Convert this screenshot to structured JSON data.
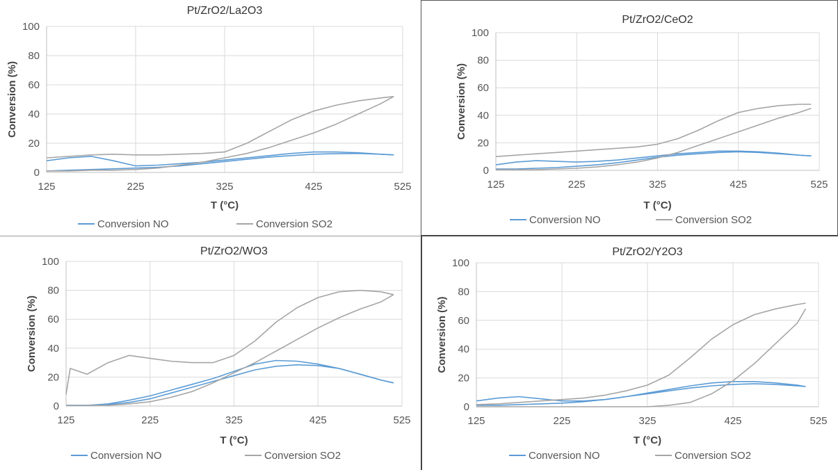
{
  "chart_data": [
    {
      "type": "line",
      "title": "Pt/ZrO2/La2O3",
      "xlabel": "T (°C)",
      "ylabel": "Conversion  (%)",
      "xlim": [
        125,
        525
      ],
      "ylim": [
        0,
        100
      ],
      "xticks": [
        125,
        225,
        325,
        425,
        525
      ],
      "yticks": [
        0,
        20,
        40,
        60,
        80,
        100
      ],
      "grid": true,
      "legend": "bottom",
      "series": [
        {
          "name": "Conversion  NO",
          "color": "#5b9bd5",
          "segments": [
            {
              "x": [
                125,
                150,
                175,
                200,
                225,
                250,
                275,
                300,
                325,
                350,
                375,
                400,
                425,
                450,
                475,
                500,
                515
              ],
              "y": [
                1,
                1.5,
                2,
                2.5,
                3,
                3.5,
                4.5,
                6,
                7.5,
                9,
                10.5,
                11.5,
                12.5,
                12.8,
                13,
                12.5,
                12
              ]
            },
            {
              "x": [
                515,
                500,
                475,
                450,
                425,
                400,
                375,
                350,
                325,
                300,
                275,
                250,
                225,
                200,
                175,
                150,
                125
              ],
              "y": [
                12,
                12.5,
                13.5,
                14,
                14,
                13,
                11.5,
                10,
                8.5,
                7,
                6,
                5,
                4.5,
                8,
                11,
                10,
                8
              ]
            }
          ]
        },
        {
          "name": "Conversion  SO2",
          "color": "#a5a5a5",
          "segments": [
            {
              "x": [
                125,
                150,
                175,
                200,
                225,
                250,
                275,
                300,
                325,
                350,
                375,
                400,
                425,
                450,
                475,
                500,
                515
              ],
              "y": [
                1,
                1,
                1.5,
                1.5,
                2,
                3,
                5,
                7,
                10,
                13,
                17,
                22,
                27,
                33,
                40,
                47,
                52
              ]
            },
            {
              "x": [
                515,
                500,
                475,
                450,
                425,
                400,
                375,
                350,
                325,
                300,
                275,
                250,
                225,
                200,
                175,
                150,
                125
              ],
              "y": [
                52,
                51,
                49,
                46,
                42,
                36,
                28,
                20,
                14,
                13,
                12.5,
                12,
                12,
                12.5,
                12,
                11,
                10
              ]
            }
          ]
        }
      ]
    },
    {
      "type": "line",
      "title": "Pt/ZrO2/CeO2",
      "xlabel": "T (°C)",
      "ylabel": "Conversion  (%)",
      "xlim": [
        125,
        525
      ],
      "ylim": [
        0,
        100
      ],
      "xticks": [
        125,
        225,
        325,
        425,
        525
      ],
      "yticks": [
        0,
        20,
        40,
        60,
        80,
        100
      ],
      "grid": true,
      "legend": "bottom",
      "series": [
        {
          "name": "Conversion  NO",
          "color": "#5b9bd5",
          "segments": [
            {
              "x": [
                125,
                150,
                175,
                200,
                225,
                250,
                275,
                300,
                325,
                350,
                375,
                400,
                425,
                450,
                475,
                500,
                515
              ],
              "y": [
                1,
                1,
                1.5,
                2,
                3,
                4,
                5.5,
                7.5,
                9.5,
                11,
                12,
                13,
                13.5,
                13,
                12,
                11,
                10.5
              ]
            },
            {
              "x": [
                515,
                500,
                475,
                450,
                425,
                400,
                375,
                350,
                325,
                300,
                275,
                250,
                225,
                200,
                175,
                150,
                125
              ],
              "y": [
                10.5,
                11,
                12.5,
                13.5,
                14,
                14,
                13,
                12,
                10.5,
                9,
                7.5,
                6.5,
                6,
                6.5,
                7,
                6,
                4
              ]
            }
          ]
        },
        {
          "name": "Conversion  SO2",
          "color": "#a5a5a5",
          "segments": [
            {
              "x": [
                125,
                150,
                175,
                200,
                225,
                250,
                275,
                300,
                325,
                350,
                375,
                400,
                425,
                450,
                475,
                500,
                515
              ],
              "y": [
                0.5,
                0.5,
                0.5,
                1,
                1.5,
                2.5,
                4,
                6,
                9,
                13,
                18,
                23,
                28,
                33,
                38,
                42,
                45
              ]
            },
            {
              "x": [
                515,
                500,
                475,
                450,
                425,
                400,
                375,
                350,
                325,
                300,
                275,
                250,
                225,
                200,
                175,
                150,
                125
              ],
              "y": [
                48,
                48,
                47,
                45,
                42,
                36,
                29,
                23,
                19,
                17,
                16,
                15,
                14,
                13,
                12,
                11,
                10
              ]
            }
          ]
        }
      ]
    },
    {
      "type": "line",
      "title": "Pt/ZrO2/WO3",
      "xlabel": "T (°C)",
      "ylabel": "Conversion  (%)",
      "xlim": [
        125,
        525
      ],
      "ylim": [
        0,
        100
      ],
      "xticks": [
        125,
        225,
        325,
        425,
        525
      ],
      "yticks": [
        0,
        20,
        40,
        60,
        80,
        100
      ],
      "grid": true,
      "legend": "bottom",
      "series": [
        {
          "name": "Conversion  NO",
          "color": "#5b9bd5",
          "segments": [
            {
              "x": [
                125,
                150,
                175,
                200,
                225,
                250,
                275,
                300,
                325,
                350,
                375,
                400,
                425,
                450,
                475,
                500,
                515
              ],
              "y": [
                0.5,
                0.5,
                1,
                2.5,
                5,
                9,
                13,
                17,
                21,
                25,
                27.5,
                28.5,
                28,
                26,
                22,
                18,
                16
              ]
            },
            {
              "x": [
                515,
                500,
                475,
                450,
                425,
                400,
                375,
                350,
                325,
                300,
                275,
                250,
                225,
                200,
                175,
                150,
                125
              ],
              "y": [
                16,
                18,
                22,
                26,
                29,
                31,
                31.5,
                29,
                24,
                19,
                15,
                11,
                7,
                4,
                1.5,
                0.5,
                0.5
              ]
            }
          ]
        },
        {
          "name": "Conversion  SO2",
          "color": "#a5a5a5",
          "segments": [
            {
              "x": [
                125,
                150,
                175,
                200,
                225,
                250,
                275,
                300,
                325,
                350,
                375,
                400,
                425,
                450,
                475,
                500,
                515
              ],
              "y": [
                0.5,
                0.5,
                0.5,
                1.5,
                3,
                6,
                10,
                16,
                23,
                30,
                38,
                46,
                54,
                61,
                67,
                72,
                77
              ]
            },
            {
              "x": [
                515,
                500,
                475,
                450,
                425,
                400,
                375,
                350,
                325,
                300,
                275,
                250,
                225,
                200,
                175,
                150,
                130,
                125
              ],
              "y": [
                77,
                79,
                80,
                79,
                75,
                68,
                58,
                45,
                35,
                30,
                30,
                31,
                33,
                35,
                30,
                22,
                26,
                8
              ]
            }
          ]
        }
      ]
    },
    {
      "type": "line",
      "title": "Pt/ZrO2/Y2O3",
      "xlabel": "T (°C)",
      "ylabel": "Conversion  (%)",
      "xlim": [
        125,
        525
      ],
      "ylim": [
        0,
        100
      ],
      "xticks": [
        125,
        225,
        325,
        425,
        525
      ],
      "yticks": [
        0,
        20,
        40,
        60,
        80,
        100
      ],
      "grid": true,
      "legend": "bottom",
      "series": [
        {
          "name": "Conversion  NO",
          "color": "#5b9bd5",
          "segments": [
            {
              "x": [
                125,
                150,
                175,
                200,
                225,
                250,
                275,
                300,
                325,
                350,
                375,
                400,
                425,
                450,
                475,
                500,
                510
              ],
              "y": [
                1,
                1,
                1.5,
                2,
                2.5,
                3.5,
                5,
                7,
                9,
                11,
                13,
                14.5,
                15.5,
                16,
                15.5,
                14.5,
                14
              ]
            },
            {
              "x": [
                510,
                500,
                475,
                450,
                425,
                400,
                375,
                350,
                325,
                300,
                275,
                250,
                225,
                200,
                175,
                150,
                125
              ],
              "y": [
                14,
                15,
                16.5,
                17.5,
                17.5,
                16.5,
                14.5,
                12,
                9.5,
                7,
                5,
                4,
                4,
                5.5,
                7,
                6,
                4
              ]
            }
          ]
        },
        {
          "name": "Conversion  SO2",
          "color": "#a5a5a5",
          "segments": [
            {
              "x": [
                125,
                175,
                225,
                275,
                325,
                350,
                375,
                400,
                425,
                450,
                475,
                500,
                510
              ],
              "y": [
                0,
                0,
                0,
                0,
                0,
                1,
                3,
                9,
                18,
                30,
                44,
                58,
                68
              ]
            },
            {
              "x": [
                510,
                500,
                475,
                450,
                425,
                400,
                375,
                350,
                325,
                300,
                275,
                250,
                225,
                200,
                175,
                150,
                125
              ],
              "y": [
                72,
                71,
                68,
                64,
                57,
                47,
                34,
                22,
                15,
                11,
                8,
                6,
                5,
                4,
                3,
                2,
                1.5
              ]
            }
          ]
        }
      ]
    }
  ]
}
